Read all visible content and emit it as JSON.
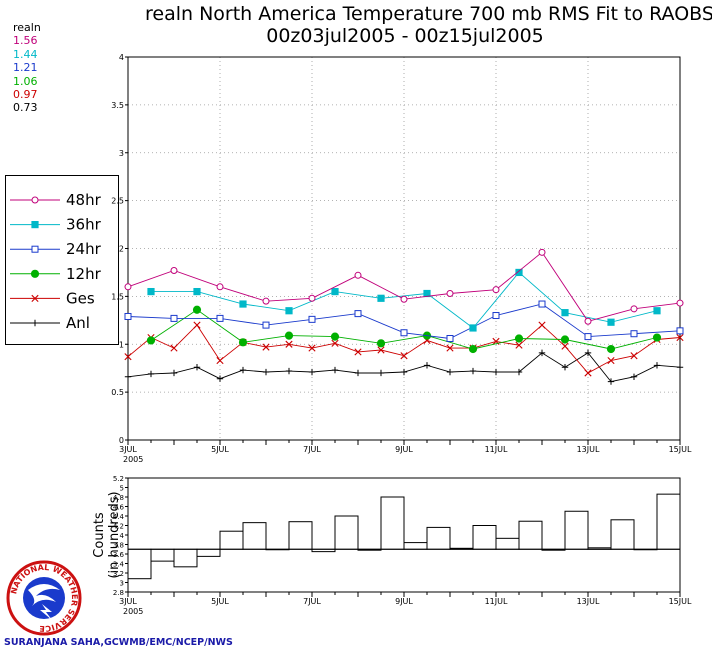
{
  "header": {
    "title_line1": "realn North America Temperature 700 mb RMS Fit to RAOBS",
    "title_line2": "00z03jul2005 - 00z15jul2005"
  },
  "stats_panel": {
    "label": "realn",
    "values": [
      {
        "text": "1.56",
        "color": "#c0007a"
      },
      {
        "text": "1.44",
        "color": "#00b8c8"
      },
      {
        "text": "1.21",
        "color": "#1a3acc"
      },
      {
        "text": "1.06",
        "color": "#00b000"
      },
      {
        "text": "0.97",
        "color": "#cc0000"
      },
      {
        "text": "0.73",
        "color": "#000000"
      }
    ]
  },
  "credit": "SURANJANA SAHA,GCWMB/EMC/NCEP/NWS",
  "logo_text": "NATIONAL WEATHER SERVICE",
  "chart_data": [
    {
      "type": "line",
      "title": "realn North America Temperature 700 mb RMS Fit to RAOBS",
      "subtitle": "00z03jul2005 - 00z15jul2005",
      "x_start_label": "3JUL",
      "x_year_label": "2005",
      "x_tick_labels": [
        "3JUL",
        "5JUL",
        "7JUL",
        "9JUL",
        "11JUL",
        "13JUL",
        "15JUL"
      ],
      "xlim": [
        0,
        12
      ],
      "ylim": [
        0,
        4
      ],
      "y_ticks": [
        "0",
        "0.5",
        "1",
        "1.5",
        "2",
        "2.5",
        "3",
        "3.5",
        "4"
      ],
      "grid": true,
      "legend_position": "left",
      "series": [
        {
          "name": "48hr",
          "color": "#c0007a",
          "marker": "open-circle",
          "x": [
            0,
            1,
            2,
            3,
            4,
            5,
            6,
            7,
            8,
            9,
            10,
            11,
            12
          ],
          "y": [
            1.6,
            1.77,
            1.6,
            1.45,
            1.48,
            1.72,
            1.47,
            1.53,
            1.57,
            1.96,
            1.24,
            1.37,
            1.43
          ]
        },
        {
          "name": "36hr",
          "color": "#00b8c8",
          "marker": "filled-square",
          "x": [
            0.5,
            1.5,
            2.5,
            3.5,
            4.5,
            5.5,
            6.5,
            7.5,
            8.5,
            9.5,
            10.5,
            11.5
          ],
          "y": [
            1.55,
            1.55,
            1.42,
            1.35,
            1.55,
            1.48,
            1.53,
            1.17,
            1.75,
            1.33,
            1.23,
            1.35
          ]
        },
        {
          "name": "24hr",
          "color": "#1a3acc",
          "marker": "open-square",
          "x": [
            0,
            1,
            2,
            3,
            4,
            5,
            6,
            7,
            8,
            9,
            10,
            11,
            12
          ],
          "y": [
            1.29,
            1.27,
            1.27,
            1.2,
            1.26,
            1.32,
            1.12,
            1.06,
            1.3,
            1.42,
            1.08,
            1.11,
            1.14
          ]
        },
        {
          "name": "12hr",
          "color": "#00b000",
          "marker": "filled-circle",
          "x": [
            0.5,
            1.5,
            2.5,
            3.5,
            4.5,
            5.5,
            6.5,
            7.5,
            8.5,
            9.5,
            10.5,
            11.5
          ],
          "y": [
            1.04,
            1.36,
            1.02,
            1.09,
            1.08,
            1.01,
            1.09,
            0.95,
            1.06,
            1.05,
            0.95,
            1.07
          ]
        },
        {
          "name": "Ges",
          "color": "#cc0000",
          "marker": "x",
          "x": [
            0,
            0.5,
            1,
            1.5,
            2,
            2.5,
            3,
            3.5,
            4,
            4.5,
            5,
            5.5,
            6,
            6.5,
            7,
            7.5,
            8,
            8.5,
            9,
            9.5,
            10,
            10.5,
            11,
            11.5,
            12
          ],
          "y": [
            0.87,
            1.07,
            0.96,
            1.2,
            0.83,
            1.02,
            0.97,
            1.0,
            0.96,
            1.01,
            0.92,
            0.94,
            0.88,
            1.04,
            0.96,
            0.96,
            1.03,
            0.99,
            1.2,
            0.98,
            0.7,
            0.83,
            0.88,
            1.05,
            1.07
          ]
        },
        {
          "name": "Anl",
          "color": "#000000",
          "marker": "plus",
          "x": [
            0,
            0.5,
            1,
            1.5,
            2,
            2.5,
            3,
            3.5,
            4,
            4.5,
            5,
            5.5,
            6,
            6.5,
            7,
            7.5,
            8,
            8.5,
            9,
            9.5,
            10,
            10.5,
            11,
            11.5,
            12
          ],
          "y": [
            0.66,
            0.69,
            0.7,
            0.76,
            0.64,
            0.73,
            0.71,
            0.72,
            0.71,
            0.73,
            0.7,
            0.7,
            0.71,
            0.78,
            0.71,
            0.72,
            0.71,
            0.71,
            0.91,
            0.76,
            0.91,
            0.61,
            0.66,
            0.78,
            0.76
          ]
        }
      ]
    },
    {
      "type": "bar",
      "ylabel_line1": "Counts",
      "ylabel_line2": "(in hundreds)",
      "ylim": [
        2.8,
        5.2
      ],
      "baseline": 3.7,
      "y_ticks": [
        "2.8",
        "3",
        "3.2",
        "3.4",
        "3.6",
        "3.8",
        "4",
        "4.2",
        "4.4",
        "4.6",
        "4.8",
        "5",
        "5.2"
      ],
      "x_tick_labels": [
        "3JUL",
        "5JUL",
        "7JUL",
        "9JUL",
        "11JUL",
        "13JUL",
        "15JUL"
      ],
      "x_year_label": "2005",
      "xlim": [
        0,
        12
      ],
      "bars": {
        "x": [
          0,
          0.5,
          1,
          1.5,
          2,
          2.5,
          3,
          3.5,
          4,
          4.5,
          5,
          5.5,
          6,
          6.5,
          7,
          7.5,
          8,
          8.5,
          9,
          9.5,
          10,
          10.5,
          11,
          11.5
        ],
        "values": [
          3.08,
          3.45,
          3.33,
          3.55,
          4.08,
          4.26,
          3.7,
          4.28,
          3.65,
          4.4,
          3.68,
          4.8,
          3.84,
          4.16,
          3.72,
          4.2,
          3.93,
          4.29,
          3.68,
          4.5,
          3.73,
          4.32,
          3.7,
          4.86
        ]
      }
    }
  ]
}
